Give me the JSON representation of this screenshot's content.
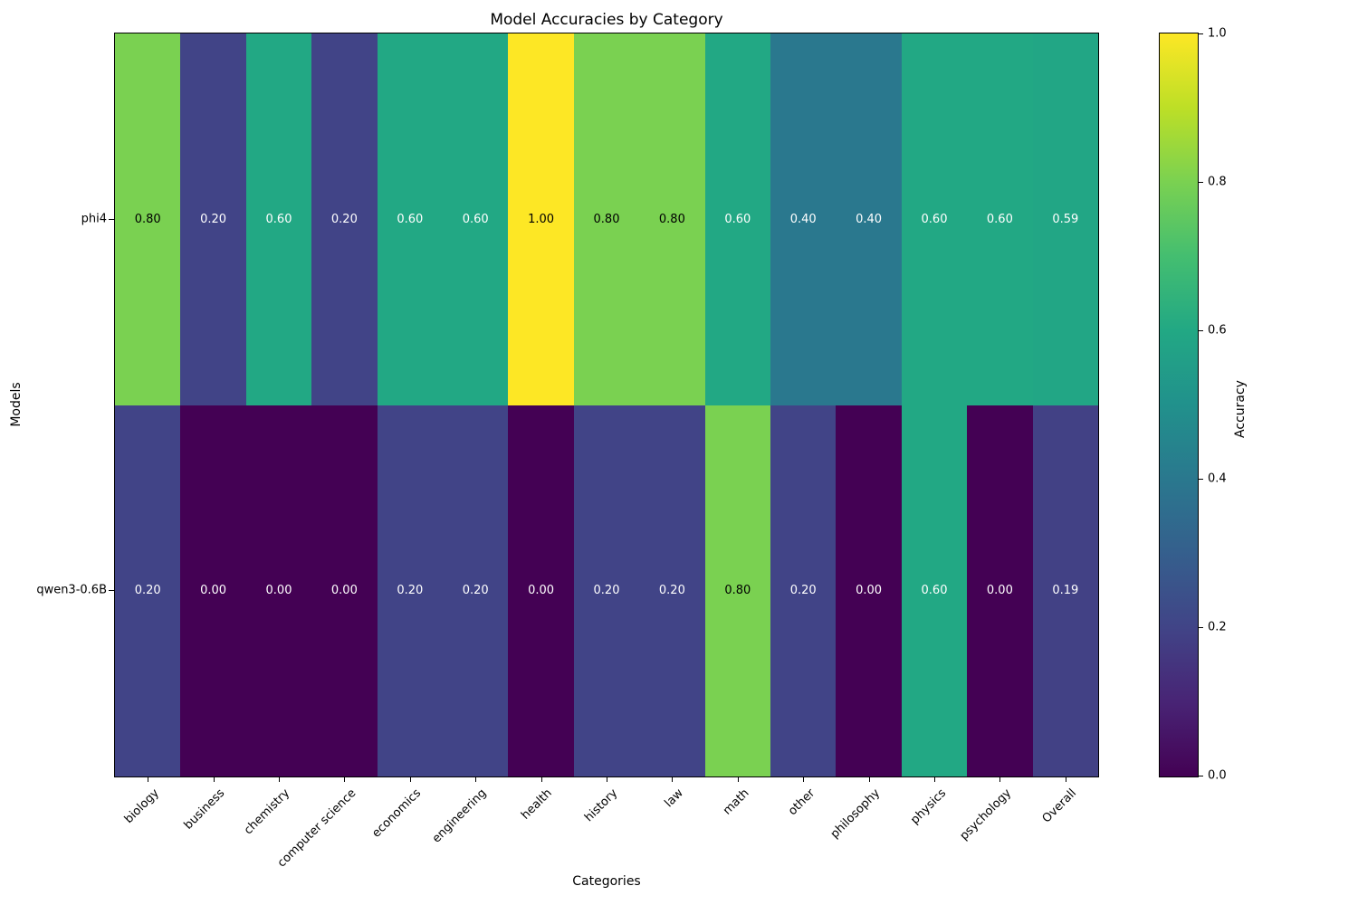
{
  "chart_data": {
    "type": "heatmap",
    "title": "Model Accuracies by Category",
    "xlabel": "Categories",
    "ylabel": "Models",
    "colorbar_label": "Accuracy",
    "colormap": "viridis",
    "vmin": 0.0,
    "vmax": 1.0,
    "colorbar_ticks": [
      {
        "label": "1.0",
        "value": 1.0
      },
      {
        "label": "0.8",
        "value": 0.8
      },
      {
        "label": "0.6",
        "value": 0.6
      },
      {
        "label": "0.4",
        "value": 0.4
      },
      {
        "label": "0.2",
        "value": 0.2
      },
      {
        "label": "0.0",
        "value": 0.0
      }
    ],
    "categories": [
      "biology",
      "business",
      "chemistry",
      "computer science",
      "economics",
      "engineering",
      "health",
      "history",
      "law",
      "math",
      "other",
      "philosophy",
      "physics",
      "psychology",
      "Overall"
    ],
    "series": [
      {
        "name": "phi4",
        "values": [
          0.8,
          0.2,
          0.6,
          0.2,
          0.6,
          0.6,
          1.0,
          0.8,
          0.8,
          0.6,
          0.4,
          0.4,
          0.6,
          0.6,
          0.59
        ]
      },
      {
        "name": "qwen3-0.6B",
        "values": [
          0.2,
          0.0,
          0.0,
          0.0,
          0.2,
          0.2,
          0.0,
          0.2,
          0.2,
          0.8,
          0.2,
          0.0,
          0.6,
          0.0,
          0.19
        ]
      }
    ]
  }
}
